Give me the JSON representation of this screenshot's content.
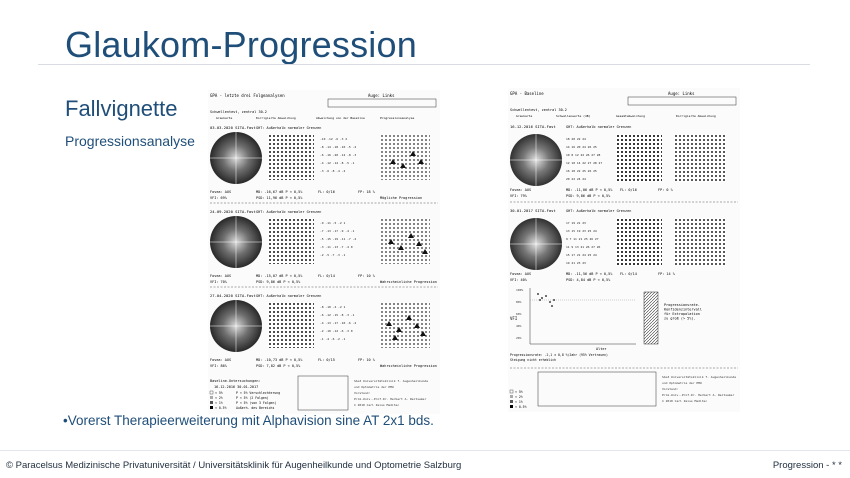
{
  "slide": {
    "title": "Glaukom-Progression",
    "subtitle": "Fallvignette",
    "subsubtitle": "Progressionsanalyse",
    "bullet": "•Vorerst Therapieerweiterung mit Alphavision sine AT 2x1 bds."
  },
  "footer": {
    "left": "© Paracelsus Medizinische Privatuniversität / Universitätsklinik für Augenheilkunde und Optometrie Salzburg",
    "right": "Progression - * *"
  },
  "report_left": {
    "header": "GPA - letzte drei Folgeanalysen",
    "eye": "Auge: Links",
    "field": "Schwellentest, zentral 30-2",
    "col_labels": [
      "Graukarte",
      "Korrigierte Abweichung",
      "Abweichung von der Baseline",
      "Progressionsanalyse"
    ],
    "exams": [
      {
        "date": "03-03-2020 SITA-Fast",
        "ght": "GHT: Außerhalb normaler Grenzen",
        "fovea": "Fovea: AUS",
        "vfi": "VFI: 69%",
        "md": "MD: -16,67 dB  P < 0,5%",
        "psd": "PSD: 11,96 dB  P < 0,5%",
        "fl": "FL: 0/16",
        "fp": "FP: 18 %",
        "verdict": "Mögliche Progression"
      },
      {
        "date": "24-09-2020 SITA-Fast",
        "ght": "GHT: Außerhalb normaler Grenzen",
        "fovea": "Fovea: AUS",
        "vfi": "VFI: 70%",
        "md": "MD: -15,07 dB  P < 0,5%",
        "psd": "PSD: 9,86 dB  P < 0,5%",
        "fl": "FL: 0/14",
        "fp": "FP: 10 %",
        "verdict": "Wahrscheinliche Progression"
      },
      {
        "date": "27-04-2020 SITA-Fast",
        "ght": "GHT: Außerhalb normaler Grenzen",
        "fovea": "Fovea: AUS",
        "vfi": "VFI: 86%",
        "md": "MD: -10,73 dB  P < 0,5%",
        "psd": "PSD: 7,82 dB  P < 0,5%",
        "fl": "FL: 0/15",
        "fp": "FP: 10 %",
        "verdict": "Wahrscheinliche Progression"
      }
    ],
    "baseline_label": "Baseline-Untersuchungen:",
    "baseline_dates": "16-12-2016    30-01-2017",
    "legend": [
      "< 5%",
      "< 2%",
      "< 1%",
      "< 0.5%"
    ],
    "legend_text": [
      "P < 5% Verschlechterung",
      "P < 5% (2 Folgen)",
      "P < 5% (von 3 Folgen)",
      "Außerh. des Bereichs"
    ]
  },
  "report_right": {
    "header": "GPA - Baseline",
    "eye": "Auge: Links",
    "field": "Schwellentest, zentral 30-2",
    "col_labels": [
      "Graukarte",
      "Schwellenwerte (dB)",
      "Gesamtabweichung",
      "Korrigierte Abweichung"
    ],
    "exams": [
      {
        "date": "16-12-2016 SITA-Fast",
        "ght": "GHT: Außerhalb normaler Grenzen",
        "fovea": "Fovea: AUS",
        "vfi": "VFI: 79%",
        "md": "MD: -11,06 dB  P < 0,5%",
        "psd": "PSD: 9,86 dB  P < 0,5%",
        "fl": "FL: 0/16",
        "fp": "FP: 0 %"
      },
      {
        "date": "30-01-2017 SITA-Fast",
        "ght": "GHT: Außerhalb normaler Grenzen",
        "fovea": "Fovea: AUS",
        "vfi": "VFI: 40%",
        "md": "MD: -11,56 dB  P < 0,5%",
        "psd": "PSD: 4,84 dB  P < 0,5%",
        "fl": "FL: 0/14",
        "fp": "FP: 14 %"
      }
    ],
    "vfi_label": "VFI",
    "age_label": "Alter",
    "projection_text": "Progressionsrate-Konfidenzintervall für Extrapolation zu groß (> 5%).",
    "rate_text": "Progressionsrate: -2,1 ± 0,8 %/Jahr (95% Vertrauen)",
    "rate_text2": "Steigung nicht erheblich",
    "legend": [
      "< 5%",
      "< 2%",
      "< 1%",
      "< 0.5%"
    ]
  }
}
